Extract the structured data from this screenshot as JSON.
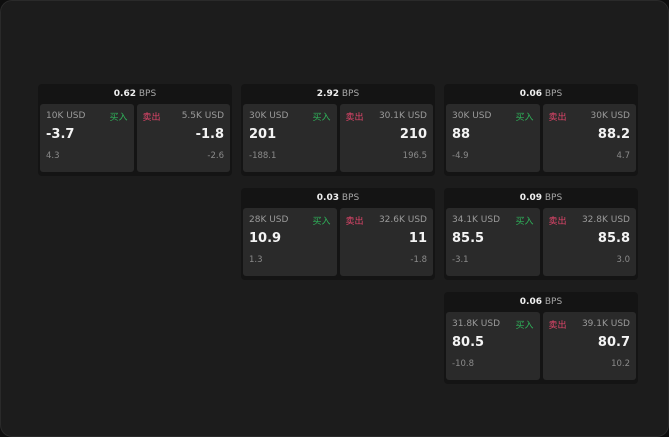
{
  "unit": "BPS",
  "buy_label": "买入",
  "sell_label": "卖出",
  "panels": [
    {
      "spread": "0.62",
      "buy": {
        "size": "10K USD",
        "price": "-3.7",
        "change": "4.3"
      },
      "sell": {
        "size": "5.5K USD",
        "price": "-1.8",
        "change": "-2.6"
      }
    },
    {
      "spread": "2.92",
      "buy": {
        "size": "30K USD",
        "price": "201",
        "change": "-188.1"
      },
      "sell": {
        "size": "30.1K USD",
        "price": "210",
        "change": "196.5"
      }
    },
    {
      "spread": "0.06",
      "buy": {
        "size": "30K USD",
        "price": "88",
        "change": "-4.9"
      },
      "sell": {
        "size": "30K USD",
        "price": "88.2",
        "change": "4.7"
      }
    },
    {
      "spread": "0.03",
      "buy": {
        "size": "28K USD",
        "price": "10.9",
        "change": "1.3"
      },
      "sell": {
        "size": "32.6K USD",
        "price": "11",
        "change": "-1.8"
      }
    },
    {
      "spread": "0.09",
      "buy": {
        "size": "34.1K USD",
        "price": "85.5",
        "change": "-3.1"
      },
      "sell": {
        "size": "32.8K USD",
        "price": "85.8",
        "change": "3.0"
      }
    },
    {
      "spread": "0.06",
      "buy": {
        "size": "31.8K USD",
        "price": "80.5",
        "change": "-10.8"
      },
      "sell": {
        "size": "39.1K USD",
        "price": "80.7",
        "change": "10.2"
      }
    }
  ]
}
